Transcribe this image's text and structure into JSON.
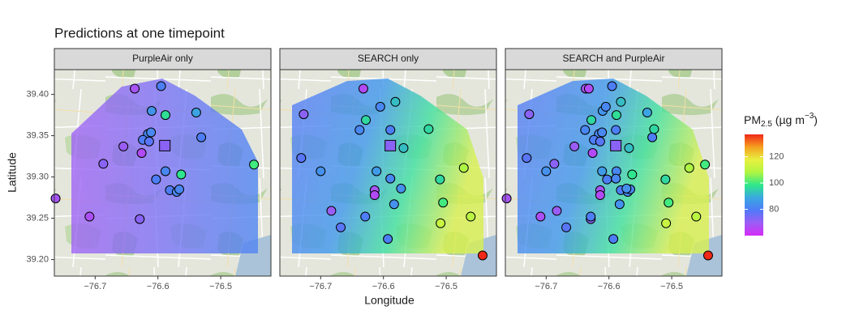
{
  "title": "Predictions at one timepoint",
  "x_label": "Longitude",
  "y_label": "Latitude",
  "colorbar": {
    "label_main": "PM",
    "label_sub": "2.5",
    "label_unit": " (µg m",
    "label_sup": "−3",
    "label_end": ")",
    "lim": [
      60,
      137
    ],
    "ticks": [
      80,
      100,
      120
    ],
    "colormap": [
      "#d42cf7",
      "#9d5cf5",
      "#4f7af8",
      "#3aa8e0",
      "#2ee88a",
      "#b0f542",
      "#e8f040",
      "#f5a020",
      "#f02818"
    ]
  },
  "chart_data": [
    {
      "type": "scatter",
      "title": "PurpleAir only",
      "x": [
        -76.637,
        -76.595,
        -76.61,
        -76.588,
        -76.539,
        -76.616,
        -76.611,
        -76.624,
        -76.614,
        -76.655,
        -76.626,
        -76.531,
        -76.687,
        -76.588,
        -76.563,
        -76.603,
        -76.581,
        -76.57,
        -76.566,
        -76.447,
        -76.763,
        -76.709,
        -76.629
      ],
      "y": [
        39.407,
        39.41,
        39.38,
        39.375,
        39.378,
        39.352,
        39.354,
        39.345,
        39.343,
        39.337,
        39.329,
        39.348,
        39.316,
        39.307,
        39.303,
        39.297,
        39.284,
        39.282,
        39.285,
        39.315,
        39.274,
        39.252,
        39.249
      ],
      "values": [
        68,
        80,
        85,
        97,
        88,
        82,
        82,
        80,
        78,
        70,
        66,
        80,
        72,
        82,
        98,
        80,
        80,
        82,
        82,
        100,
        68,
        67,
        72
      ],
      "square": {
        "x": -76.589,
        "y": 39.338,
        "value": 72
      },
      "xlim": [
        -76.765,
        -76.42
      ],
      "ylim": [
        39.18,
        39.43
      ],
      "xticks": [
        {
          "value": -76.7,
          "label": "−76.7"
        },
        {
          "value": -76.6,
          "label": "−76.6"
        },
        {
          "value": -76.5,
          "label": "−76.5"
        }
      ],
      "yticks": [
        {
          "value": 39.2,
          "label": "39.20"
        },
        39.25,
        {
          "value": 39.3,
          "label": "39.30"
        },
        39.35,
        {
          "value": 39.4,
          "label": "39.40"
        }
      ]
    },
    {
      "type": "scatter",
      "title": "SEARCH only",
      "x": [
        -76.632,
        -76.727,
        -76.581,
        -76.605,
        -76.628,
        -76.638,
        -76.589,
        -76.528,
        -76.568,
        -76.731,
        -76.7,
        -76.611,
        -76.589,
        -76.472,
        -76.51,
        -76.614,
        -76.614,
        -76.572,
        -76.583,
        -76.505,
        -76.683,
        -76.629,
        -76.668,
        -76.509,
        -76.461,
        -76.593,
        -76.442
      ],
      "y": [
        39.407,
        39.376,
        39.391,
        39.385,
        39.369,
        39.357,
        39.357,
        39.358,
        39.335,
        39.323,
        39.307,
        39.307,
        39.298,
        39.311,
        39.297,
        39.284,
        39.278,
        39.286,
        39.267,
        39.269,
        39.259,
        39.252,
        39.239,
        39.244,
        39.252,
        39.225,
        39.205
      ],
      "values": [
        66,
        72,
        92,
        82,
        96,
        82,
        80,
        96,
        92,
        78,
        84,
        86,
        82,
        108,
        96,
        68,
        66,
        84,
        84,
        100,
        70,
        80,
        78,
        112,
        110,
        80,
        137
      ],
      "square": {
        "x": -76.589,
        "y": 39.338,
        "value": 72
      },
      "xlim": [
        -76.765,
        -76.42
      ],
      "ylim": [
        39.18,
        39.43
      ],
      "xticks": [
        {
          "value": -76.7,
          "label": "−76.7"
        },
        {
          "value": -76.6,
          "label": "−76.6"
        },
        {
          "value": -76.5,
          "label": "−76.5"
        }
      ]
    },
    {
      "type": "scatter",
      "title": "SEARCH and PurpleAir",
      "x": [
        -76.637,
        -76.595,
        -76.61,
        -76.588,
        -76.539,
        -76.616,
        -76.611,
        -76.624,
        -76.614,
        -76.655,
        -76.626,
        -76.531,
        -76.687,
        -76.588,
        -76.563,
        -76.603,
        -76.581,
        -76.57,
        -76.566,
        -76.447,
        -76.763,
        -76.709,
        -76.629,
        -76.632,
        -76.727,
        -76.581,
        -76.605,
        -76.628,
        -76.638,
        -76.589,
        -76.528,
        -76.568,
        -76.731,
        -76.7,
        -76.611,
        -76.589,
        -76.472,
        -76.51,
        -76.614,
        -76.614,
        -76.572,
        -76.583,
        -76.505,
        -76.683,
        -76.629,
        -76.668,
        -76.509,
        -76.461,
        -76.593,
        -76.442
      ],
      "y": [
        39.407,
        39.41,
        39.38,
        39.375,
        39.378,
        39.352,
        39.354,
        39.345,
        39.343,
        39.337,
        39.329,
        39.348,
        39.316,
        39.307,
        39.303,
        39.297,
        39.284,
        39.282,
        39.285,
        39.315,
        39.274,
        39.252,
        39.249,
        39.407,
        39.376,
        39.391,
        39.385,
        39.369,
        39.357,
        39.357,
        39.358,
        39.335,
        39.323,
        39.307,
        39.307,
        39.298,
        39.311,
        39.297,
        39.284,
        39.278,
        39.286,
        39.267,
        39.269,
        39.259,
        39.252,
        39.239,
        39.244,
        39.252,
        39.225,
        39.205
      ],
      "values": [
        68,
        80,
        85,
        97,
        88,
        82,
        82,
        80,
        78,
        70,
        66,
        80,
        72,
        82,
        98,
        80,
        80,
        82,
        82,
        100,
        68,
        67,
        72,
        66,
        72,
        92,
        82,
        96,
        82,
        80,
        96,
        92,
        78,
        84,
        86,
        82,
        108,
        96,
        68,
        66,
        84,
        84,
        100,
        70,
        80,
        78,
        112,
        110,
        80,
        137
      ],
      "square": {
        "x": -76.589,
        "y": 39.338,
        "value": 72
      },
      "xlim": [
        -76.765,
        -76.42
      ],
      "ylim": [
        39.18,
        39.43
      ],
      "xticks": [
        {
          "value": -76.7,
          "label": "−76.7"
        },
        {
          "value": -76.6,
          "label": "−76.6"
        },
        {
          "value": -76.5,
          "label": "−76.5"
        }
      ]
    }
  ]
}
